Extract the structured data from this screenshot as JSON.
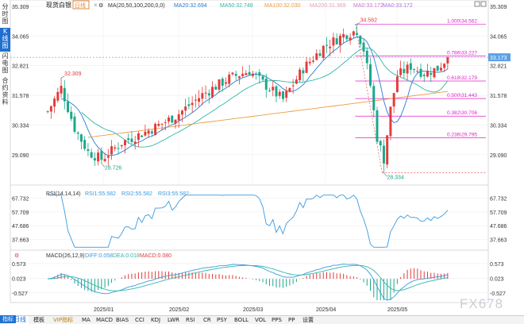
{
  "header": {
    "symbol": "现货白银",
    "period": "日线",
    "close_label": "×",
    "ma_params": "MA(20,50,100,200,0,0)",
    "ma20": "MA20:32.694",
    "ma50": "MA50:32.748",
    "ma100": "MA100:32.030",
    "ma200": "MA200:31.369",
    "ma0a": "MA0:33.172",
    "ma0b": "MA0:33.172"
  },
  "sidebar": [
    {
      "label": "分时图",
      "active": false
    },
    {
      "label": "K线图",
      "active": true
    },
    {
      "label": "闪电图",
      "active": false
    },
    {
      "label": "合约资料",
      "active": false
    }
  ],
  "rsi_header": {
    "name": "RSI(14,14,14)",
    "rsi1": "RSI1:55.582",
    "rsi2": "RSI2:55.582",
    "rsi3": "RSI3:55.582"
  },
  "macd_header": {
    "name": "MACD(26,12,9)",
    "diff": "DIFF:0.058",
    "dea": "DEA:0.018",
    "macd": "MACD:0.080"
  },
  "bottom_tabs": [
    {
      "label": "日线",
      "active": true,
      "vip": false
    },
    {
      "label": "指标",
      "active": true,
      "vip": false
    },
    {
      "label": "模板",
      "active": false,
      "vip": false
    },
    {
      "label": "VIP指标",
      "active": false,
      "vip": true
    },
    {
      "label": "MA",
      "active": false,
      "vip": false
    },
    {
      "label": "MACD",
      "active": false,
      "vip": false
    },
    {
      "label": "BIAS",
      "active": false,
      "vip": false
    },
    {
      "label": "CCI",
      "active": false,
      "vip": false
    },
    {
      "label": "KDJ",
      "active": false,
      "vip": false
    },
    {
      "label": "LWR",
      "active": false,
      "vip": false
    },
    {
      "label": "RSI",
      "active": false,
      "vip": false
    },
    {
      "label": "CR",
      "active": false,
      "vip": false
    },
    {
      "label": "PSY",
      "active": false,
      "vip": false
    },
    {
      "label": "BOLL",
      "active": false,
      "vip": false
    },
    {
      "label": "VOL",
      "active": false,
      "vip": false
    },
    {
      "label": "PPS",
      "active": false,
      "vip": false
    },
    {
      "label": "PP",
      "active": false,
      "vip": false
    },
    {
      "label": "设置",
      "active": false,
      "vip": false
    }
  ],
  "watermark": "FX678",
  "colors": {
    "up": "#e23b3b",
    "down": "#1aa88a",
    "ma20": "#2a7bd4",
    "ma50": "#2fb7a8",
    "ma100": "#f09a3e",
    "fib": "#e020c8",
    "price_tag": "#5aa0e6"
  },
  "chart_data": [
    {
      "type": "candlestick",
      "symbol": "现货白银",
      "yticks": [
        "35.309",
        "34.065",
        "32.821",
        "31.578",
        "30.334",
        "29.090"
      ],
      "ylim": [
        27.85,
        35.309
      ],
      "x_labels": [
        "2025/01",
        "2025/02",
        "2025/03",
        "2025/04",
        "2025/05"
      ],
      "current_price": "33.173",
      "annotations": {
        "high_1": "32.309",
        "low_1": "28.726",
        "high_2": "34.562",
        "low_2": "28.334"
      },
      "fibonacci": [
        {
          "level": "1.000",
          "value": "34.562"
        },
        {
          "level": "0.786",
          "value": "33.227"
        },
        {
          "level": "0.618",
          "value": "32.179"
        },
        {
          "level": "0.500",
          "value": "31.443"
        },
        {
          "level": "0.382",
          "value": "30.706"
        },
        {
          "level": "0.236",
          "value": "29.795"
        }
      ],
      "ma_series": [
        "MA20",
        "MA50",
        "MA100"
      ]
    },
    {
      "type": "line",
      "name": "RSI(14,14,14)",
      "yticks": [
        "67.732",
        "57.709",
        "47.686",
        "37.663"
      ],
      "ylim": [
        31,
        71
      ]
    },
    {
      "type": "bar",
      "name": "MACD(26,12,9)",
      "yticks": [
        "0.573",
        "0.023",
        "-0.527"
      ],
      "ylim": [
        -0.8,
        0.75
      ]
    }
  ]
}
